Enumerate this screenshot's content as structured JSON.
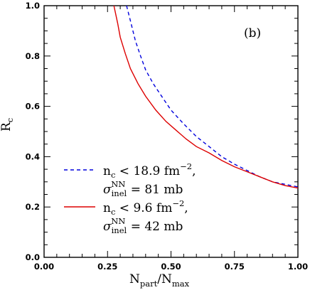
{
  "chart_data": {
    "type": "line",
    "panel_label": "(b)",
    "xlabel": {
      "main": "N",
      "sub1": "part",
      "sep": "/N",
      "sub2": "max"
    },
    "ylabel": {
      "main": "R",
      "sub": "c"
    },
    "xlim": [
      0.0,
      1.0
    ],
    "ylim": [
      0.0,
      1.0
    ],
    "xticks": [
      "0.00",
      "0.25",
      "0.50",
      "0.75",
      "1.00"
    ],
    "yticks": [
      "0.0",
      "0.2",
      "0.4",
      "0.6",
      "0.8",
      "1.0"
    ],
    "legend_position": "lower-left",
    "series": [
      {
        "color": "#0000dd",
        "style": "dashed",
        "legend_line1": {
          "main": "n",
          "sub": "c",
          "rest": " < 18.9 fm",
          "sup": "−2",
          "tail": ","
        },
        "legend_line2": {
          "main": "σ",
          "sub": "inel",
          "sup": "NN",
          "rest": " = 81 mb"
        },
        "points": [
          [
            0.325,
            1.0
          ],
          [
            0.34,
            0.94
          ],
          [
            0.36,
            0.86
          ],
          [
            0.38,
            0.8
          ],
          [
            0.4,
            0.745
          ],
          [
            0.43,
            0.69
          ],
          [
            0.46,
            0.645
          ],
          [
            0.5,
            0.585
          ],
          [
            0.55,
            0.53
          ],
          [
            0.6,
            0.48
          ],
          [
            0.65,
            0.44
          ],
          [
            0.7,
            0.4
          ],
          [
            0.75,
            0.37
          ],
          [
            0.8,
            0.345
          ],
          [
            0.85,
            0.32
          ],
          [
            0.9,
            0.3
          ],
          [
            0.95,
            0.29
          ],
          [
            1.0,
            0.28
          ]
        ]
      },
      {
        "color": "#dd0000",
        "style": "solid",
        "legend_line1": {
          "main": "n",
          "sub": "c",
          "rest": " < 9.6 fm",
          "sup": "−2",
          "tail": ","
        },
        "legend_line2": {
          "main": "σ",
          "sub": "inel",
          "sup": "NN",
          "rest": " = 42 mb"
        },
        "points": [
          [
            0.275,
            1.0
          ],
          [
            0.29,
            0.93
          ],
          [
            0.3,
            0.875
          ],
          [
            0.32,
            0.81
          ],
          [
            0.34,
            0.75
          ],
          [
            0.37,
            0.69
          ],
          [
            0.4,
            0.64
          ],
          [
            0.44,
            0.585
          ],
          [
            0.48,
            0.54
          ],
          [
            0.52,
            0.505
          ],
          [
            0.56,
            0.47
          ],
          [
            0.6,
            0.44
          ],
          [
            0.65,
            0.415
          ],
          [
            0.7,
            0.385
          ],
          [
            0.75,
            0.36
          ],
          [
            0.8,
            0.34
          ],
          [
            0.85,
            0.32
          ],
          [
            0.9,
            0.3
          ],
          [
            0.95,
            0.285
          ],
          [
            1.0,
            0.275
          ]
        ]
      }
    ]
  }
}
